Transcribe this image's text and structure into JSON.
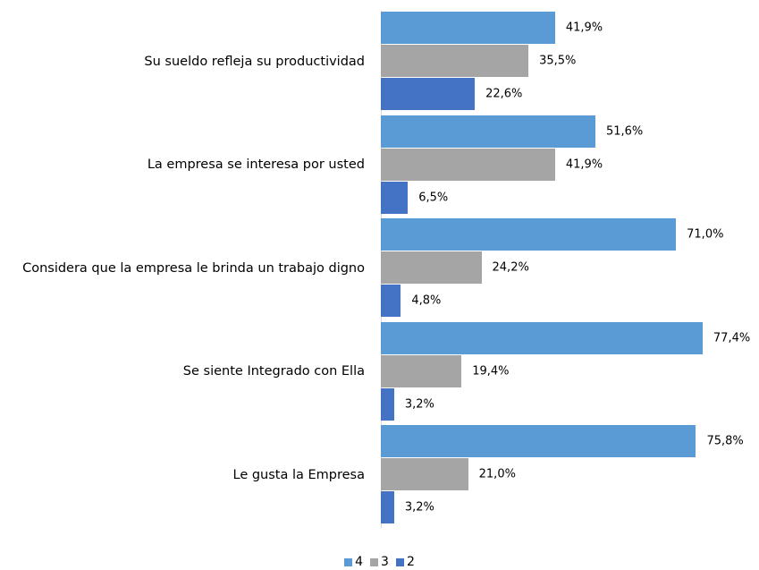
{
  "chart_data": {
    "type": "bar",
    "orientation": "horizontal",
    "categories": [
      "Su sueldo refleja su productividad",
      "La empresa se interesa por usted",
      "Considera que la empresa le brinda un trabajo digno",
      "Se siente Integrado con Ella",
      "Le gusta la Empresa"
    ],
    "series": [
      {
        "name": "4",
        "color": "#5b9bd5",
        "values": [
          41.9,
          51.6,
          71.0,
          77.4,
          75.8
        ],
        "value_labels": [
          "41,9%",
          "51,6%",
          "71,0%",
          "77,4%",
          "75,8%"
        ]
      },
      {
        "name": "3",
        "color": "#a5a5a5",
        "values": [
          35.5,
          41.9,
          24.2,
          19.4,
          21.0
        ],
        "value_labels": [
          "35,5%",
          "41,9%",
          "24,2%",
          "19,4%",
          "21,0%"
        ]
      },
      {
        "name": "2",
        "color": "#4472c4",
        "values": [
          22.6,
          6.5,
          4.8,
          3.2,
          3.2
        ],
        "value_labels": [
          "22,6%",
          "6,5%",
          "4,8%",
          "3,2%",
          "3,2%"
        ]
      }
    ],
    "legend": "bottom"
  }
}
